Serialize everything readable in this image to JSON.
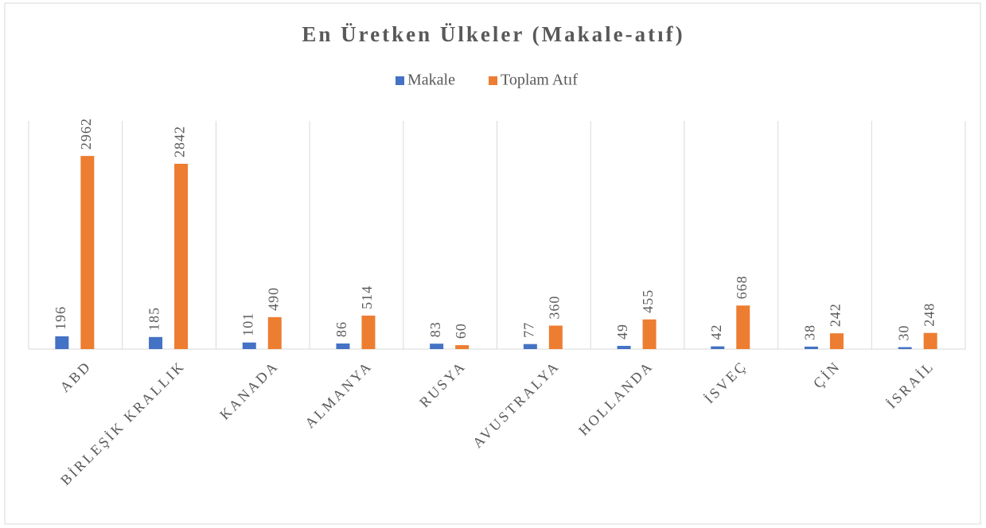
{
  "chart_data": {
    "type": "bar",
    "title": "En Üretken Ülkeler (Makale-atıf)",
    "categories": [
      "ABD",
      "BİRLEŞİK KRALLIK",
      "KANADA",
      "ALMANYA",
      "RUSYA",
      "AVUSTRALYA",
      "HOLLANDA",
      "İSVEÇ",
      "ÇİN",
      "İSRAİL"
    ],
    "series": [
      {
        "name": "Makale",
        "color": "#4472c4",
        "values": [
          196,
          185,
          101,
          86,
          83,
          77,
          49,
          42,
          38,
          30
        ]
      },
      {
        "name": "Toplam Atıf",
        "color": "#ed7d31",
        "values": [
          2962,
          2842,
          490,
          514,
          60,
          360,
          455,
          668,
          242,
          248
        ]
      }
    ],
    "ylim": [
      0,
      3500
    ],
    "legend": "top"
  }
}
